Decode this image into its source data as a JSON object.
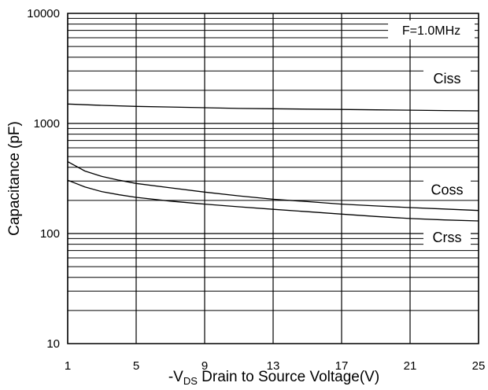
{
  "chart_data": {
    "type": "line",
    "title": "",
    "ylabel": "Capacitance (pF)",
    "xlabel": {
      "prefix": "-V",
      "subscript": "DS",
      "suffix": " Drain to Source Voltage(V)"
    },
    "annotation": "F=1.0MHz",
    "x_scale": "linear",
    "y_scale": "log",
    "xlim": [
      1,
      25
    ],
    "ylim": [
      10,
      10000
    ],
    "x_ticks": [
      "1",
      "5",
      "9",
      "13",
      "17",
      "21",
      "25"
    ],
    "y_ticks": [
      "10",
      "100",
      "1000",
      "10000"
    ],
    "grid": true,
    "series": [
      {
        "name": "Ciss",
        "x": [
          1,
          3,
          5,
          7,
          9,
          11,
          13,
          15,
          17,
          19,
          21,
          23,
          25
        ],
        "y": [
          1500,
          1460,
          1430,
          1410,
          1390,
          1370,
          1360,
          1350,
          1340,
          1330,
          1320,
          1310,
          1300
        ]
      },
      {
        "name": "Coss",
        "x": [
          1,
          2,
          3,
          4,
          5,
          7,
          9,
          11,
          13,
          15,
          17,
          19,
          21,
          23,
          25
        ],
        "y": [
          450,
          370,
          330,
          305,
          285,
          260,
          238,
          220,
          205,
          195,
          185,
          178,
          172,
          167,
          162
        ]
      },
      {
        "name": "Crss",
        "x": [
          1,
          2,
          3,
          4,
          5,
          7,
          9,
          11,
          13,
          15,
          17,
          19,
          21,
          23,
          25
        ],
        "y": [
          305,
          265,
          240,
          225,
          213,
          197,
          185,
          175,
          166,
          158,
          150,
          143,
          137,
          133,
          130
        ]
      }
    ]
  }
}
